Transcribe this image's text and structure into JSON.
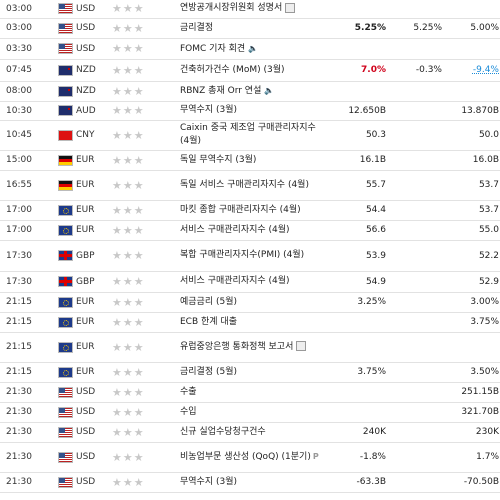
{
  "rows": [
    {
      "time": "03:00",
      "flag": "usa",
      "currency": "USD",
      "event": "연방공개시장위원회 성명서",
      "icon": "document-icon",
      "actual": "",
      "forecast": "",
      "previous": "",
      "h": 18
    },
    {
      "time": "03:00",
      "flag": "usa",
      "currency": "USD",
      "event": "금리결정",
      "icon": "",
      "actual": "5.25%",
      "actual_style": "bold",
      "forecast": "5.25%",
      "previous": "5.00%",
      "h": 20
    },
    {
      "time": "03:30",
      "flag": "usa",
      "currency": "USD",
      "event": "FOMC 기자 회견",
      "icon": "speaker-icon",
      "actual": "",
      "forecast": "",
      "previous": "",
      "h": 21
    },
    {
      "time": "07:45",
      "flag": "nz",
      "currency": "NZD",
      "event": "건축허가건수 (MoM) (3월)",
      "icon": "",
      "actual": "7.0%",
      "actual_style": "red",
      "forecast": "-0.3%",
      "previous": "-9.4%",
      "previous_style": "blue-link",
      "h": 22
    },
    {
      "time": "08:00",
      "flag": "nz",
      "currency": "NZD",
      "event": "RBNZ 총재 Orr 연설",
      "icon": "speaker-icon",
      "actual": "",
      "forecast": "",
      "previous": "",
      "h": 20
    },
    {
      "time": "10:30",
      "flag": "au",
      "currency": "AUD",
      "event": "무역수지 (3월)",
      "icon": "",
      "actual": "12.650B",
      "forecast": "",
      "previous": "13.870B",
      "h": 19
    },
    {
      "time": "10:45",
      "flag": "cn",
      "currency": "CNY",
      "event": "Caixin 중국 제조업 구매관리자지수 (4월)",
      "icon": "",
      "actual": "50.3",
      "forecast": "",
      "previous": "50.0",
      "h": 30
    },
    {
      "time": "15:00",
      "flag": "de",
      "currency": "EUR",
      "event": "독일 무역수지 (3월)",
      "icon": "",
      "actual": "16.1B",
      "forecast": "",
      "previous": "16.0B",
      "h": 20
    },
    {
      "time": "16:55",
      "flag": "de",
      "currency": "EUR",
      "event": "독일 서비스 구매관리자지수 (4월)",
      "icon": "",
      "actual": "55.7",
      "forecast": "",
      "previous": "53.7",
      "h": 30
    },
    {
      "time": "17:00",
      "flag": "eu",
      "currency": "EUR",
      "event": "마킷 종합 구매관리자지수 (4월)",
      "icon": "",
      "actual": "54.4",
      "forecast": "",
      "previous": "53.7",
      "h": 20
    },
    {
      "time": "17:00",
      "flag": "eu",
      "currency": "EUR",
      "event": "서비스 구매관리자지수 (4월)",
      "icon": "",
      "actual": "56.6",
      "forecast": "",
      "previous": "55.0",
      "h": 20
    },
    {
      "time": "17:30",
      "flag": "gb",
      "currency": "GBP",
      "event": "복합 구매관리자지수(PMI) (4월)",
      "icon": "",
      "actual": "53.9",
      "forecast": "",
      "previous": "52.2",
      "h": 31
    },
    {
      "time": "17:30",
      "flag": "gb",
      "currency": "GBP",
      "event": "서비스 구매관리자지수 (4월)",
      "icon": "",
      "actual": "54.9",
      "forecast": "",
      "previous": "52.9",
      "h": 21
    },
    {
      "time": "21:15",
      "flag": "eu",
      "currency": "EUR",
      "event": "예금금리 (5월)",
      "icon": "",
      "actual": "3.25%",
      "forecast": "",
      "previous": "3.00%",
      "h": 20
    },
    {
      "time": "21:15",
      "flag": "eu",
      "currency": "EUR",
      "event": "ECB 한계 대출",
      "icon": "",
      "actual": "",
      "forecast": "",
      "previous": "3.75%",
      "h": 20
    },
    {
      "time": "21:15",
      "flag": "eu",
      "currency": "EUR",
      "event": "유럽중앙은행 통화정책 보고서",
      "icon": "document-icon",
      "actual": "",
      "forecast": "",
      "previous": "",
      "h": 30
    },
    {
      "time": "21:15",
      "flag": "eu",
      "currency": "EUR",
      "event": "금리결정 (5월)",
      "icon": "",
      "actual": "3.75%",
      "forecast": "",
      "previous": "3.50%",
      "h": 20
    },
    {
      "time": "21:30",
      "flag": "usa",
      "currency": "USD",
      "event": "수출",
      "icon": "",
      "actual": "",
      "forecast": "",
      "previous": "251.15B",
      "h": 20
    },
    {
      "time": "21:30",
      "flag": "usa",
      "currency": "USD",
      "event": "수입",
      "icon": "",
      "actual": "",
      "forecast": "",
      "previous": "321.70B",
      "h": 20
    },
    {
      "time": "21:30",
      "flag": "usa",
      "currency": "USD",
      "event": "신규 실업수당청구건수",
      "icon": "",
      "actual": "240K",
      "forecast": "",
      "previous": "230K",
      "h": 20
    },
    {
      "time": "21:30",
      "flag": "usa",
      "currency": "USD",
      "event": "비농업부문 생산성 (QoQ) (1분기)",
      "icon": "p-icon",
      "actual": "-1.8%",
      "forecast": "",
      "previous": "1.7%",
      "h": 30
    },
    {
      "time": "21:30",
      "flag": "usa",
      "currency": "USD",
      "event": "무역수지 (3월)",
      "icon": "",
      "actual": "-63.3B",
      "forecast": "",
      "previous": "-70.50B",
      "h": 20
    }
  ]
}
